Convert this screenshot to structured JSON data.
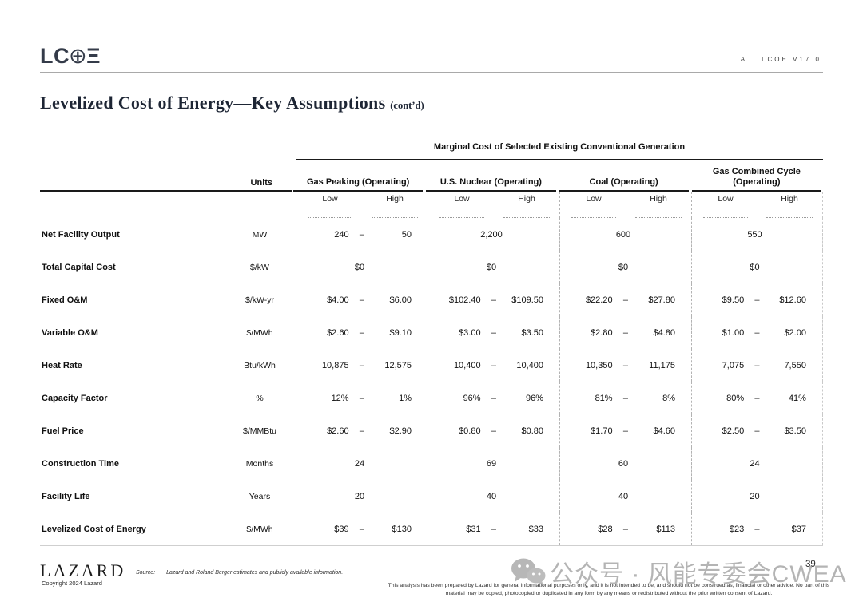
{
  "header": {
    "logo_lc": "LC",
    "logo_oplus": "⊕",
    "logo_xi": "Ξ",
    "version_prefix": "A",
    "version": "LCOE V17.0"
  },
  "title": {
    "main": "Levelized Cost of Energy—Key Assumptions",
    "suffix": "(cont’d)"
  },
  "table": {
    "spanner": "Marginal Cost of Selected Existing Conventional Generation",
    "units_header": "Units",
    "dash": "–",
    "groups": [
      {
        "name": "Gas Peaking (Operating)"
      },
      {
        "name": "U.S. Nuclear (Operating)"
      },
      {
        "name": "Coal (Operating)"
      },
      {
        "name": "Gas Combined Cycle (Operating)"
      }
    ],
    "sub_headers": [
      "Low",
      "High"
    ],
    "rows": [
      {
        "label": "Net Facility Output",
        "unit": "MW",
        "cells": [
          {
            "low": "240",
            "high": "50"
          },
          {
            "single": "2,200"
          },
          {
            "single": "600"
          },
          {
            "single": "550"
          }
        ]
      },
      {
        "label": "Total Capital Cost",
        "unit": "$/kW",
        "cells": [
          {
            "single": "$0"
          },
          {
            "single": "$0"
          },
          {
            "single": "$0"
          },
          {
            "single": "$0"
          }
        ]
      },
      {
        "label": "Fixed O&M",
        "unit": "$/kW-yr",
        "cells": [
          {
            "low": "$4.00",
            "high": "$6.00"
          },
          {
            "low": "$102.40",
            "high": "$109.50"
          },
          {
            "low": "$22.20",
            "high": "$27.80"
          },
          {
            "low": "$9.50",
            "high": "$12.60"
          }
        ]
      },
      {
        "label": "Variable O&M",
        "unit": "$/MWh",
        "cells": [
          {
            "low": "$2.60",
            "high": "$9.10"
          },
          {
            "low": "$3.00",
            "high": "$3.50"
          },
          {
            "low": "$2.80",
            "high": "$4.80"
          },
          {
            "low": "$1.00",
            "high": "$2.00"
          }
        ]
      },
      {
        "label": "Heat Rate",
        "unit": "Btu/kWh",
        "cells": [
          {
            "low": "10,875",
            "high": "12,575"
          },
          {
            "low": "10,400",
            "high": "10,400"
          },
          {
            "low": "10,350",
            "high": "11,175"
          },
          {
            "low": "7,075",
            "high": "7,550"
          }
        ]
      },
      {
        "label": "Capacity Factor",
        "unit": "%",
        "cells": [
          {
            "low": "12%",
            "high": "1%"
          },
          {
            "low": "96%",
            "high": "96%"
          },
          {
            "low": "81%",
            "high": "8%"
          },
          {
            "low": "80%",
            "high": "41%"
          }
        ]
      },
      {
        "label": "Fuel Price",
        "unit": "$/MMBtu",
        "cells": [
          {
            "low": "$2.60",
            "high": "$2.90"
          },
          {
            "low": "$0.80",
            "high": "$0.80"
          },
          {
            "low": "$1.70",
            "high": "$4.60"
          },
          {
            "low": "$2.50",
            "high": "$3.50"
          }
        ]
      },
      {
        "label": "Construction Time",
        "unit": "Months",
        "cells": [
          {
            "single": "24"
          },
          {
            "single": "69"
          },
          {
            "single": "60"
          },
          {
            "single": "24"
          }
        ]
      },
      {
        "label": "Facility Life",
        "unit": "Years",
        "cells": [
          {
            "single": "20"
          },
          {
            "single": "40"
          },
          {
            "single": "40"
          },
          {
            "single": "20"
          }
        ]
      },
      {
        "label": "Levelized Cost of Energy",
        "unit": "$/MWh",
        "cells": [
          {
            "low": "$39",
            "high": "$130"
          },
          {
            "low": "$31",
            "high": "$33"
          },
          {
            "low": "$28",
            "high": "$113"
          },
          {
            "low": "$23",
            "high": "$37"
          }
        ]
      }
    ]
  },
  "footer": {
    "brand": "LAZARD",
    "copyright": "Copyright 2024 Lazard",
    "source_label": "Source:",
    "source_text": "Lazard and Roland Berger estimates and publicly available information.",
    "disclaimer_line1": "This analysis has been prepared by Lazard for general informational purposes only, and it is not intended to be, and should not be construed as, financial or other",
    "disclaimer_line2": "advice. No part of this material may be copied, photocopied or duplicated in any form by any means or redistributed without the prior written consent of Lazard.",
    "page_number": "39",
    "watermark_text": "公众号 · 风能专委会CWEA"
  }
}
